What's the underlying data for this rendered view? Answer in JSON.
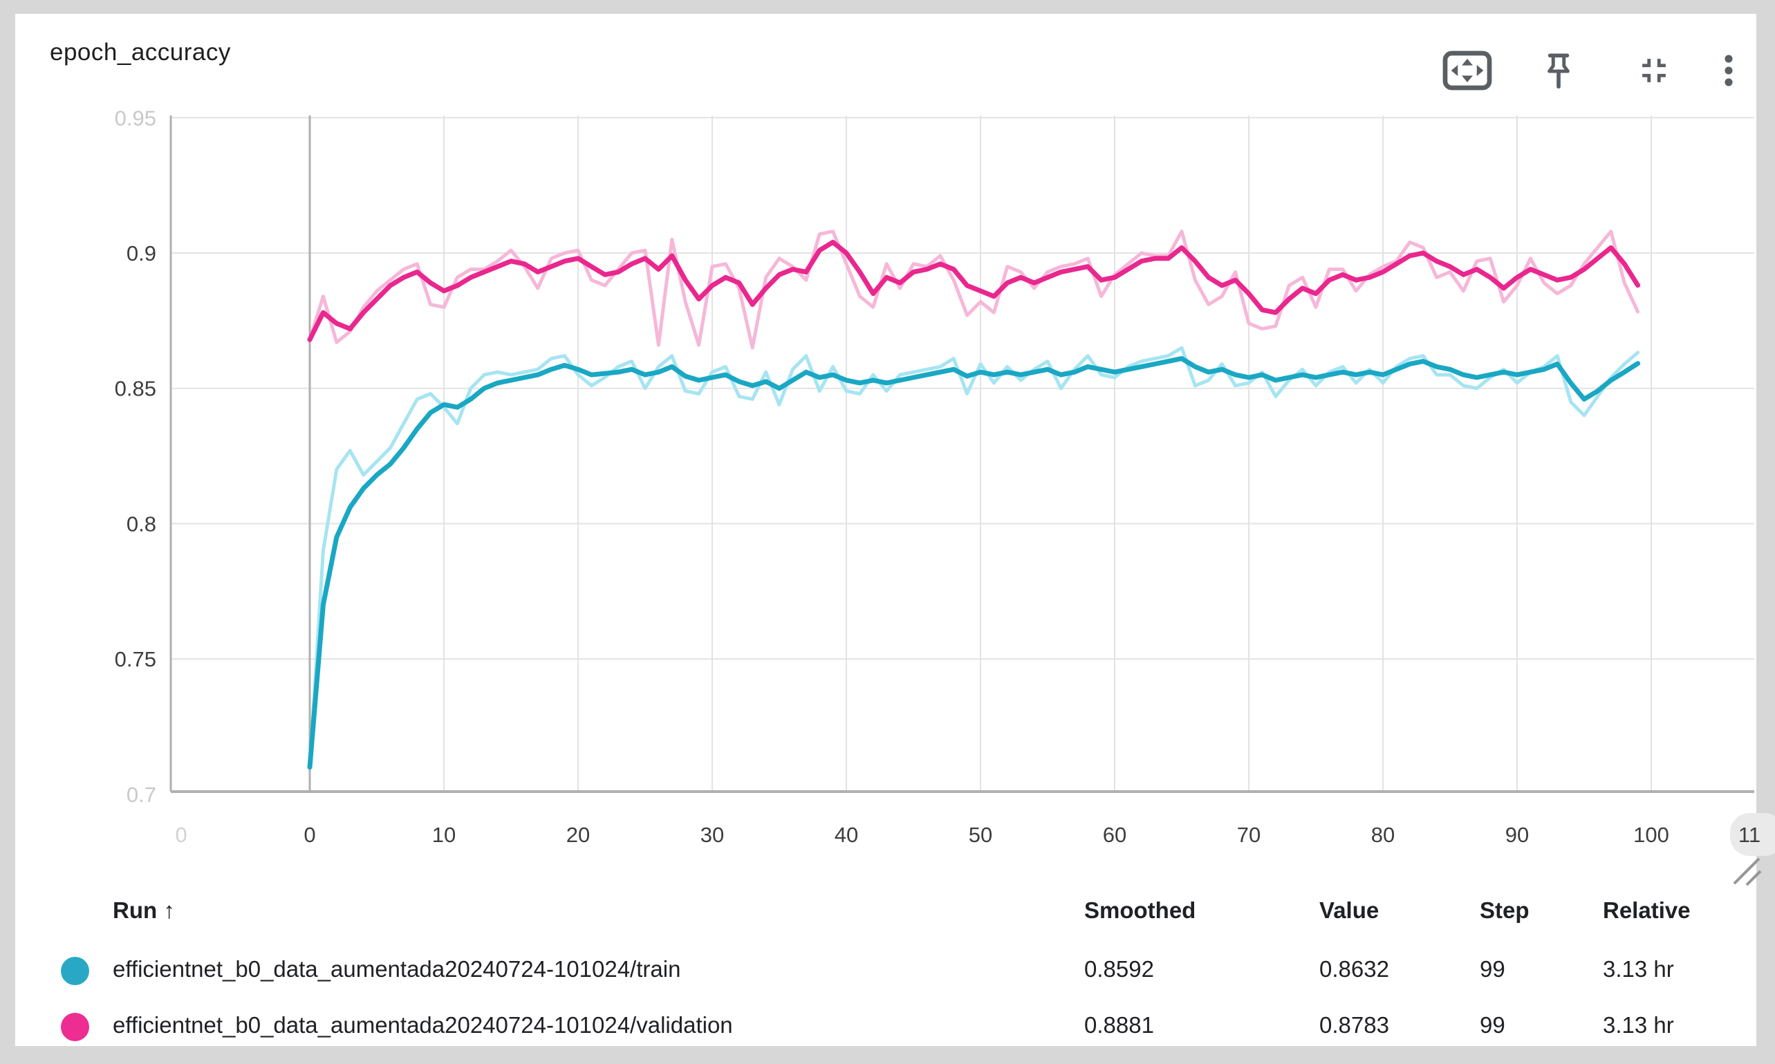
{
  "window": {
    "background": "#d7d7d7",
    "card_background": "#ffffff"
  },
  "card": {
    "title": "epoch_accuracy"
  },
  "toolbar": {
    "icons": [
      {
        "name": "fit-to-screen"
      },
      {
        "name": "pin"
      },
      {
        "name": "collapse"
      },
      {
        "name": "more-options"
      }
    ]
  },
  "chart_data": {
    "type": "line",
    "title": "epoch_accuracy",
    "grid": true,
    "legend_position": "table-below",
    "x_start": 0,
    "x_step": 1,
    "x": {
      "min": -10.15,
      "max": 107.2,
      "ticks": [
        {
          "label": "0",
          "value": 0,
          "emphasis": true
        },
        {
          "label": "10",
          "value": 10
        },
        {
          "label": "20",
          "value": 20
        },
        {
          "label": "30",
          "value": 30
        },
        {
          "label": "40",
          "value": 40
        },
        {
          "label": "50",
          "value": 50
        },
        {
          "label": "60",
          "value": 60
        },
        {
          "label": "70",
          "value": 70
        },
        {
          "label": "80",
          "value": 80
        },
        {
          "label": "90",
          "value": 90
        },
        {
          "label": "100",
          "value": 100
        }
      ],
      "edge_left_label": "0",
      "edge_right_label": "11"
    },
    "y": {
      "min": 0.7,
      "max": 0.951,
      "ticks": [
        {
          "label": "0.95",
          "value": 0.95,
          "faded": true
        },
        {
          "label": "0.9",
          "value": 0.9
        },
        {
          "label": "0.85",
          "value": 0.85
        },
        {
          "label": "0.8",
          "value": 0.8
        },
        {
          "label": "0.75",
          "value": 0.75
        },
        {
          "label": "0.7",
          "value": 0.7,
          "faded": true,
          "on_axis": true
        }
      ]
    },
    "colors": {
      "grid": "#e3e3e3",
      "axis": "#b0b0b0",
      "tick": "#3d3d3d",
      "tick_faded": "#c9c9c9",
      "pill": "#eaeaea",
      "grip": "#969696"
    },
    "series": [
      {
        "name": "train-raw",
        "role": "raw",
        "color": "#a6e4f2",
        "width": 5,
        "values": [
          0.71,
          0.79,
          0.82,
          0.827,
          0.818,
          0.823,
          0.828,
          0.837,
          0.846,
          0.848,
          0.843,
          0.837,
          0.85,
          0.855,
          0.856,
          0.855,
          0.856,
          0.857,
          0.861,
          0.862,
          0.855,
          0.851,
          0.854,
          0.858,
          0.86,
          0.85,
          0.858,
          0.862,
          0.849,
          0.848,
          0.856,
          0.858,
          0.847,
          0.846,
          0.856,
          0.844,
          0.857,
          0.862,
          0.849,
          0.858,
          0.849,
          0.848,
          0.855,
          0.849,
          0.855,
          0.856,
          0.857,
          0.858,
          0.861,
          0.848,
          0.859,
          0.852,
          0.858,
          0.853,
          0.857,
          0.86,
          0.85,
          0.857,
          0.862,
          0.855,
          0.854,
          0.858,
          0.86,
          0.861,
          0.862,
          0.865,
          0.851,
          0.853,
          0.859,
          0.851,
          0.852,
          0.856,
          0.847,
          0.853,
          0.857,
          0.851,
          0.856,
          0.858,
          0.852,
          0.857,
          0.852,
          0.858,
          0.861,
          0.862,
          0.855,
          0.855,
          0.851,
          0.85,
          0.854,
          0.857,
          0.852,
          0.856,
          0.858,
          0.862,
          0.845,
          0.84,
          0.847,
          0.854,
          0.859,
          0.8632
        ]
      },
      {
        "name": "validation-raw",
        "role": "raw",
        "color": "#f6b7d8",
        "width": 5,
        "values": [
          0.868,
          0.884,
          0.867,
          0.871,
          0.88,
          0.886,
          0.89,
          0.894,
          0.896,
          0.881,
          0.88,
          0.891,
          0.894,
          0.894,
          0.897,
          0.901,
          0.895,
          0.887,
          0.898,
          0.9,
          0.901,
          0.89,
          0.888,
          0.894,
          0.9,
          0.901,
          0.866,
          0.905,
          0.882,
          0.866,
          0.895,
          0.896,
          0.887,
          0.865,
          0.891,
          0.898,
          0.895,
          0.89,
          0.907,
          0.908,
          0.896,
          0.884,
          0.88,
          0.896,
          0.887,
          0.896,
          0.895,
          0.899,
          0.89,
          0.877,
          0.882,
          0.878,
          0.895,
          0.893,
          0.887,
          0.893,
          0.895,
          0.896,
          0.898,
          0.884,
          0.892,
          0.896,
          0.9,
          0.899,
          0.899,
          0.908,
          0.89,
          0.881,
          0.884,
          0.893,
          0.874,
          0.872,
          0.873,
          0.888,
          0.891,
          0.88,
          0.894,
          0.894,
          0.886,
          0.892,
          0.895,
          0.897,
          0.904,
          0.902,
          0.891,
          0.893,
          0.886,
          0.897,
          0.898,
          0.882,
          0.888,
          0.898,
          0.889,
          0.885,
          0.888,
          0.896,
          0.902,
          0.908,
          0.889,
          0.8783
        ]
      },
      {
        "name": "train-smoothed",
        "role": "smoothed",
        "color": "#1aa7c4",
        "width": 7,
        "values": [
          0.71,
          0.77,
          0.795,
          0.806,
          0.813,
          0.818,
          0.822,
          0.828,
          0.835,
          0.841,
          0.844,
          0.843,
          0.846,
          0.85,
          0.852,
          0.853,
          0.854,
          0.855,
          0.857,
          0.8585,
          0.857,
          0.855,
          0.8555,
          0.856,
          0.857,
          0.855,
          0.856,
          0.858,
          0.8545,
          0.853,
          0.854,
          0.855,
          0.8525,
          0.851,
          0.8525,
          0.85,
          0.853,
          0.856,
          0.854,
          0.855,
          0.853,
          0.852,
          0.853,
          0.852,
          0.853,
          0.854,
          0.855,
          0.856,
          0.857,
          0.8545,
          0.856,
          0.855,
          0.856,
          0.855,
          0.856,
          0.857,
          0.855,
          0.856,
          0.858,
          0.857,
          0.856,
          0.857,
          0.858,
          0.859,
          0.86,
          0.861,
          0.858,
          0.856,
          0.857,
          0.855,
          0.854,
          0.855,
          0.853,
          0.854,
          0.855,
          0.854,
          0.855,
          0.856,
          0.855,
          0.856,
          0.855,
          0.857,
          0.859,
          0.86,
          0.858,
          0.857,
          0.855,
          0.854,
          0.855,
          0.856,
          0.855,
          0.856,
          0.857,
          0.859,
          0.852,
          0.846,
          0.849,
          0.853,
          0.856,
          0.8592
        ]
      },
      {
        "name": "validation-smoothed",
        "role": "smoothed",
        "color": "#e9278e",
        "width": 7,
        "values": [
          0.868,
          0.878,
          0.874,
          0.872,
          0.878,
          0.883,
          0.888,
          0.891,
          0.893,
          0.889,
          0.886,
          0.888,
          0.891,
          0.893,
          0.895,
          0.897,
          0.896,
          0.893,
          0.895,
          0.897,
          0.898,
          0.895,
          0.892,
          0.893,
          0.896,
          0.898,
          0.894,
          0.899,
          0.89,
          0.883,
          0.888,
          0.891,
          0.889,
          0.881,
          0.887,
          0.892,
          0.894,
          0.893,
          0.901,
          0.904,
          0.9,
          0.893,
          0.885,
          0.891,
          0.889,
          0.893,
          0.894,
          0.896,
          0.894,
          0.888,
          0.886,
          0.884,
          0.889,
          0.891,
          0.889,
          0.891,
          0.893,
          0.894,
          0.895,
          0.89,
          0.891,
          0.894,
          0.897,
          0.898,
          0.898,
          0.902,
          0.897,
          0.891,
          0.888,
          0.89,
          0.885,
          0.879,
          0.878,
          0.883,
          0.887,
          0.885,
          0.89,
          0.892,
          0.89,
          0.891,
          0.893,
          0.896,
          0.899,
          0.9,
          0.897,
          0.895,
          0.892,
          0.894,
          0.891,
          0.887,
          0.891,
          0.894,
          0.892,
          0.89,
          0.891,
          0.894,
          0.898,
          0.902,
          0.896,
          0.8881
        ]
      }
    ]
  },
  "table": {
    "headers": {
      "run": "Run ↑",
      "smoothed": "Smoothed",
      "value": "Value",
      "step": "Step",
      "relative": "Relative"
    },
    "rows": [
      {
        "dot_color": "#29a8c5",
        "run": "efficientnet_b0_data_aumentada20240724-101024/train",
        "smoothed": "0.8592",
        "value": "0.8632",
        "step": "99",
        "relative": "3.13 hr"
      },
      {
        "dot_color": "#ed2d92",
        "run": "efficientnet_b0_data_aumentada20240724-101024/validation",
        "smoothed": "0.8881",
        "value": "0.8783",
        "step": "99",
        "relative": "3.13 hr"
      }
    ]
  }
}
